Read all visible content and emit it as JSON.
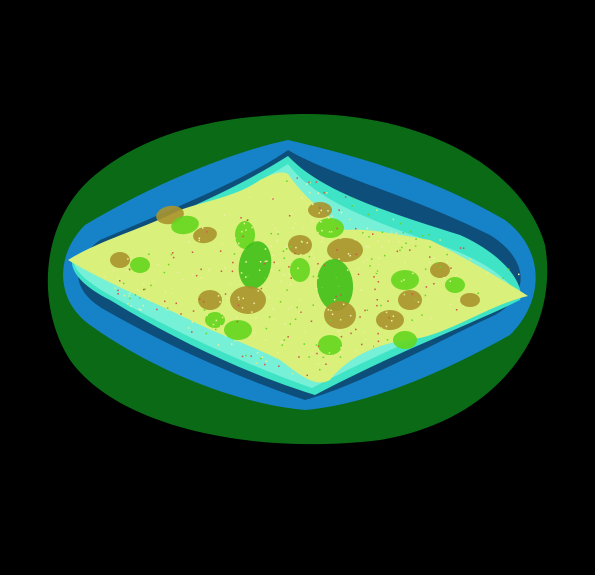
{
  "image": {
    "subject": "fractal",
    "colors": {
      "background": "#000000",
      "outer_ring": "#0b6a15",
      "blue_ring": "#1683c9",
      "deep_blue": "#0d4f7a",
      "cyan_band": "#3fe3c6",
      "aqua_band": "#76f0d7",
      "interior_light": "#d9f07a",
      "interior_speckle": "#f3eeae",
      "olive_band": "#a8932d",
      "lime_band": "#64d61e",
      "green_band": "#3fbf1a",
      "pale_yellow": "#eeee9c",
      "red_speckle": "#d2524f"
    }
  }
}
